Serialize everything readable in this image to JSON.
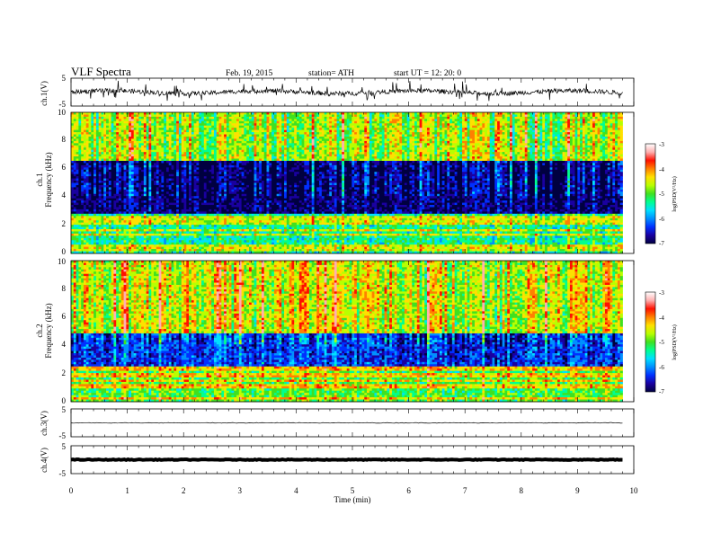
{
  "header": {
    "title": "VLF  Spectra",
    "date": "Feb. 19,  2015",
    "station": "station= ATH",
    "start": "start  UT  =    12: 20: 0"
  },
  "colors": {
    "spectrum_scale": [
      "#000000",
      "#1a0080",
      "#0000ff",
      "#00b4ff",
      "#00ffa0",
      "#30e020",
      "#c8ff00",
      "#ffe000",
      "#ff5000",
      "#ff0000",
      "#ffc8c8",
      "#ffffff"
    ],
    "trace": "#000000"
  },
  "chart_data": [
    {
      "type": "line",
      "name": "ch.1(V)",
      "ylabel": "ch.1(V)",
      "ylim": [
        -5,
        5
      ],
      "yticks": [
        "5",
        "-5"
      ],
      "xlim": [
        0,
        10
      ],
      "description_level": 0.0
    },
    {
      "type": "heatmap",
      "ylabel_channel": "ch.1",
      "ylabel": "Frequency  (kHz)",
      "ylim": [
        0,
        10
      ],
      "yticks": [
        "0",
        "2",
        "4",
        "6",
        "8",
        "10"
      ],
      "xlim": [
        0,
        9.8
      ],
      "colorbar": {
        "label": "log(PSD(V²/Hz)",
        "range": [
          -7,
          -3
        ],
        "ticks": [
          "-3",
          "-4",
          "-5",
          "-6",
          "-7"
        ]
      },
      "bands": [
        {
          "f_low": 0,
          "f_high": 2.8,
          "level": -5.2
        },
        {
          "f_low": 2.8,
          "f_high": 6.5,
          "level": -6.7
        },
        {
          "f_low": 6.5,
          "f_high": 10,
          "level": -4.6
        }
      ]
    },
    {
      "type": "heatmap",
      "ylabel_channel": "ch.2",
      "ylabel": "Frequency  (kHz)",
      "ylim": [
        0,
        10
      ],
      "yticks": [
        "0",
        "2",
        "4",
        "6",
        "8",
        "10"
      ],
      "xlim": [
        0,
        9.8
      ],
      "colorbar": {
        "label": "log(PSD(V²/Hz)",
        "range": [
          -7,
          -3
        ],
        "ticks": [
          "-3",
          "-4",
          "-5",
          "-6",
          "-7"
        ]
      },
      "bands": [
        {
          "f_low": 0,
          "f_high": 2.5,
          "level": -4.9
        },
        {
          "f_low": 2.5,
          "f_high": 4.8,
          "level": -6.2
        },
        {
          "f_low": 4.8,
          "f_high": 10,
          "level": -4.4
        }
      ]
    },
    {
      "type": "line",
      "name": "ch.3(V)",
      "ylabel": "ch.3(V)",
      "ylim": [
        -5,
        5
      ],
      "yticks": [
        "5",
        "-5"
      ],
      "xlim": [
        0,
        9.8
      ],
      "level": 0.0
    },
    {
      "type": "line",
      "name": "ch.4(V)",
      "ylabel": "ch.4(V)",
      "ylim": [
        -5,
        5
      ],
      "yticks": [
        "5",
        "-5"
      ],
      "xlim": [
        0,
        9.8
      ],
      "level": 0.0
    }
  ],
  "xaxis": {
    "label": "Time  (min)",
    "ticks": [
      "0",
      "1",
      "2",
      "3",
      "4",
      "5",
      "6",
      "7",
      "8",
      "9",
      "10"
    ],
    "range": [
      0,
      10
    ]
  }
}
